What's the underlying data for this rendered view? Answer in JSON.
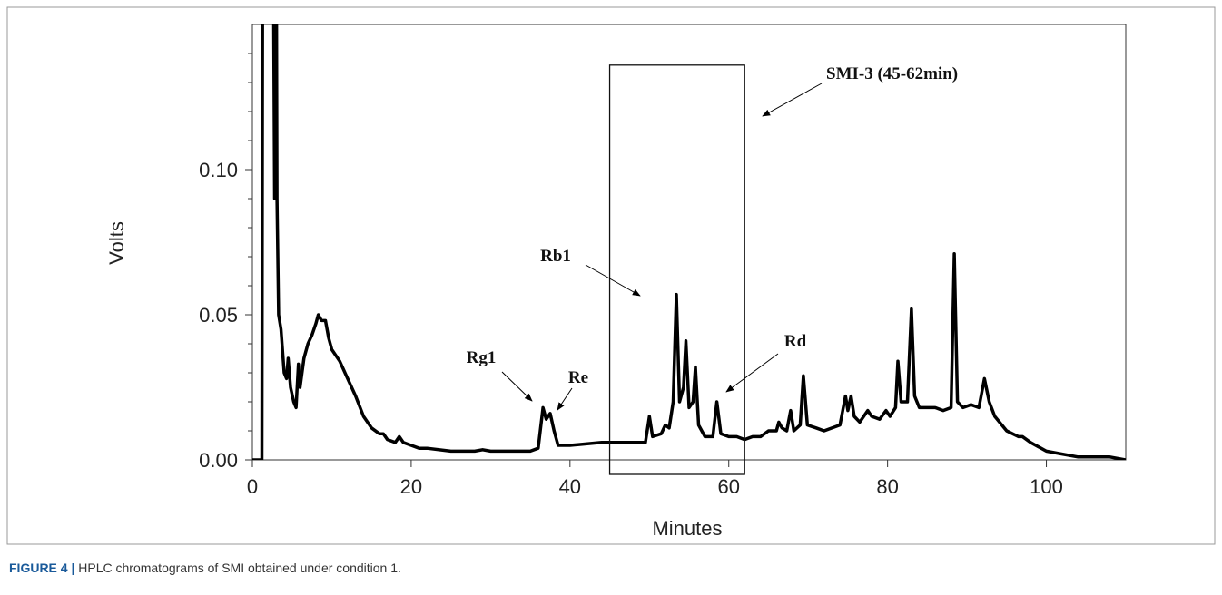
{
  "chart_data": {
    "type": "line",
    "xlabel": "Minutes",
    "ylabel": "Volts",
    "caption_label": "FIGURE 4 |",
    "caption_text": "HPLC chromatograms of SMI obtained under condition 1.",
    "x": [
      0,
      1.2,
      1.3,
      2.6,
      2.8,
      3.0,
      3.1,
      3.3,
      3.6,
      4.0,
      4.3,
      4.5,
      4.8,
      5.2,
      5.5,
      5.8,
      6.0,
      6.5,
      7,
      7.5,
      8,
      8.3,
      8.7,
      9.2,
      9.6,
      10,
      11,
      12,
      13,
      14,
      15,
      16,
      16.5,
      17,
      18,
      18.5,
      19,
      20,
      21,
      22,
      25,
      26,
      28,
      29,
      30,
      33,
      35,
      36,
      36.6,
      37,
      37.5,
      38,
      38.5,
      40,
      44,
      46,
      49.5,
      50,
      50.4,
      51.5,
      52,
      52.5,
      53,
      53.4,
      53.8,
      54.3,
      54.6,
      55,
      55.5,
      55.8,
      56.2,
      57,
      58,
      58.5,
      59,
      60,
      61,
      62,
      63,
      64,
      65,
      66,
      66.3,
      66.7,
      67.3,
      67.8,
      68.2,
      69,
      69.4,
      69.9,
      71,
      72,
      74,
      74.7,
      75,
      75.4,
      75.8,
      76.5,
      77.5,
      78,
      79,
      79.8,
      80.3,
      81,
      81.3,
      81.7,
      82.5,
      83,
      83.4,
      84,
      86,
      87,
      88,
      88.4,
      88.8,
      89.5,
      90.5,
      91.5,
      92.2,
      92.8,
      93.5,
      95,
      96.5,
      97,
      98,
      100,
      102,
      104,
      106,
      108,
      110
    ],
    "values": [
      0,
      0,
      0.2,
      0.2,
      0.09,
      0.2,
      0.09,
      0.05,
      0.045,
      0.03,
      0.028,
      0.035,
      0.025,
      0.02,
      0.018,
      0.033,
      0.025,
      0.035,
      0.04,
      0.043,
      0.047,
      0.05,
      0.048,
      0.048,
      0.042,
      0.038,
      0.034,
      0.028,
      0.022,
      0.015,
      0.011,
      0.009,
      0.009,
      0.007,
      0.006,
      0.008,
      0.006,
      0.005,
      0.004,
      0.004,
      0.003,
      0.003,
      0.003,
      0.0035,
      0.003,
      0.003,
      0.003,
      0.004,
      0.018,
      0.014,
      0.016,
      0.01,
      0.005,
      0.005,
      0.006,
      0.006,
      0.006,
      0.015,
      0.008,
      0.009,
      0.012,
      0.011,
      0.02,
      0.057,
      0.02,
      0.025,
      0.041,
      0.018,
      0.02,
      0.032,
      0.012,
      0.008,
      0.008,
      0.02,
      0.009,
      0.008,
      0.008,
      0.007,
      0.008,
      0.008,
      0.01,
      0.01,
      0.013,
      0.011,
      0.01,
      0.017,
      0.01,
      0.012,
      0.029,
      0.012,
      0.011,
      0.01,
      0.012,
      0.022,
      0.017,
      0.022,
      0.015,
      0.013,
      0.017,
      0.015,
      0.014,
      0.017,
      0.015,
      0.018,
      0.034,
      0.02,
      0.02,
      0.052,
      0.022,
      0.018,
      0.018,
      0.017,
      0.018,
      0.071,
      0.02,
      0.018,
      0.019,
      0.018,
      0.028,
      0.02,
      0.015,
      0.01,
      0.008,
      0.008,
      0.006,
      0.003,
      0.002,
      0.001,
      0.001,
      0.001,
      0
    ],
    "color": "#000000",
    "xlim": [
      0,
      110
    ],
    "xticks": [
      0,
      20,
      40,
      60,
      80,
      100
    ],
    "ylim": [
      0,
      0.15
    ],
    "yticks": [
      {
        "value": 0,
        "label": "0.00"
      },
      0.05,
      {
        "value": 0.1,
        "label": "0.10"
      }
    ],
    "yminorticks": [
      0.01,
      0.02,
      0.03,
      0.04,
      0.06,
      0.07,
      0.08,
      0.09,
      0.11,
      0.12,
      0.13,
      0.14
    ],
    "region": {
      "label": "SMI-3 (45-62min)",
      "x": [
        45,
        62
      ],
      "y": [
        -0.005,
        0.136
      ]
    },
    "annotations": [
      "Rg1",
      "Re",
      "Rb1",
      "Rd"
    ]
  }
}
